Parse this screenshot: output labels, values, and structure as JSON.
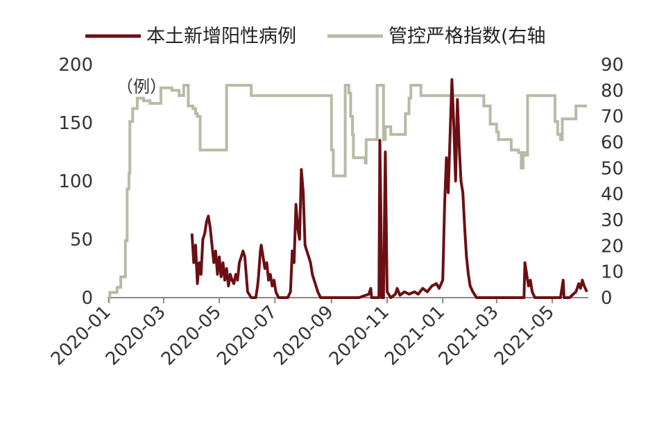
{
  "chart_data": {
    "type": "line",
    "legend": {
      "position": "top"
    },
    "unit_label": "（例）",
    "grid": false,
    "x_ticks": [
      "2020-01",
      "2020-03",
      "2020-05",
      "2020-07",
      "2020-09",
      "2020-11",
      "2021-01",
      "2021-03",
      "2021-05"
    ],
    "y_left": {
      "ticks": [
        "0",
        "50",
        "100",
        "150",
        "200"
      ],
      "range": [
        0,
        200
      ]
    },
    "y_right": {
      "ticks": [
        "0",
        "10",
        "20",
        "30",
        "40",
        "50",
        "60",
        "70",
        "80",
        "90"
      ],
      "range": [
        0,
        90
      ]
    },
    "x_range": [
      "2020-01-01",
      "2021-06-08"
    ],
    "series": [
      {
        "name": "本土新增阳性病例",
        "axis": "left",
        "color": "#6b0f14",
        "points": [
          [
            "2020-04-01",
            55
          ],
          [
            "2020-04-03",
            30
          ],
          [
            "2020-04-05",
            45
          ],
          [
            "2020-04-07",
            12
          ],
          [
            "2020-04-09",
            30
          ],
          [
            "2020-04-11",
            20
          ],
          [
            "2020-04-13",
            50
          ],
          [
            "2020-04-15",
            55
          ],
          [
            "2020-04-17",
            65
          ],
          [
            "2020-04-19",
            70
          ],
          [
            "2020-04-21",
            60
          ],
          [
            "2020-04-23",
            45
          ],
          [
            "2020-04-25",
            30
          ],
          [
            "2020-04-27",
            40
          ],
          [
            "2020-04-29",
            20
          ],
          [
            "2020-05-01",
            35
          ],
          [
            "2020-05-03",
            18
          ],
          [
            "2020-05-05",
            30
          ],
          [
            "2020-05-07",
            15
          ],
          [
            "2020-05-09",
            25
          ],
          [
            "2020-05-11",
            10
          ],
          [
            "2020-05-13",
            20
          ],
          [
            "2020-05-15",
            15
          ],
          [
            "2020-05-17",
            12
          ],
          [
            "2020-05-19",
            20
          ],
          [
            "2020-05-21",
            15
          ],
          [
            "2020-05-23",
            30
          ],
          [
            "2020-05-25",
            35
          ],
          [
            "2020-05-27",
            40
          ],
          [
            "2020-05-29",
            35
          ],
          [
            "2020-06-01",
            5
          ],
          [
            "2020-06-05",
            0
          ],
          [
            "2020-06-10",
            0
          ],
          [
            "2020-06-12",
            10
          ],
          [
            "2020-06-13",
            18
          ],
          [
            "2020-06-15",
            40
          ],
          [
            "2020-06-16",
            45
          ],
          [
            "2020-06-18",
            35
          ],
          [
            "2020-06-20",
            25
          ],
          [
            "2020-06-22",
            30
          ],
          [
            "2020-06-24",
            15
          ],
          [
            "2020-06-26",
            20
          ],
          [
            "2020-06-28",
            10
          ],
          [
            "2020-06-30",
            15
          ],
          [
            "2020-07-02",
            5
          ],
          [
            "2020-07-05",
            0
          ],
          [
            "2020-07-10",
            0
          ],
          [
            "2020-07-12",
            0
          ],
          [
            "2020-07-15",
            0
          ],
          [
            "2020-07-18",
            5
          ],
          [
            "2020-07-20",
            40
          ],
          [
            "2020-07-22",
            30
          ],
          [
            "2020-07-24",
            80
          ],
          [
            "2020-07-26",
            60
          ],
          [
            "2020-07-28",
            50
          ],
          [
            "2020-07-30",
            110
          ],
          [
            "2020-08-01",
            90
          ],
          [
            "2020-08-03",
            45
          ],
          [
            "2020-08-05",
            40
          ],
          [
            "2020-08-07",
            35
          ],
          [
            "2020-08-09",
            30
          ],
          [
            "2020-08-11",
            20
          ],
          [
            "2020-08-13",
            15
          ],
          [
            "2020-08-15",
            10
          ],
          [
            "2020-08-17",
            5
          ],
          [
            "2020-08-20",
            0
          ],
          [
            "2020-09-01",
            0
          ],
          [
            "2020-09-15",
            0
          ],
          [
            "2020-10-01",
            0
          ],
          [
            "2020-10-12",
            3
          ],
          [
            "2020-10-14",
            8
          ],
          [
            "2020-10-15",
            0
          ],
          [
            "2020-10-23",
            0
          ],
          [
            "2020-10-24",
            135
          ],
          [
            "2020-10-25",
            80
          ],
          [
            "2020-10-26",
            0
          ],
          [
            "2020-10-28",
            0
          ],
          [
            "2020-10-30",
            125
          ],
          [
            "2020-11-01",
            5
          ],
          [
            "2020-11-05",
            0
          ],
          [
            "2020-11-10",
            3
          ],
          [
            "2020-11-12",
            8
          ],
          [
            "2020-11-15",
            2
          ],
          [
            "2020-11-20",
            5
          ],
          [
            "2020-11-25",
            3
          ],
          [
            "2020-12-01",
            5
          ],
          [
            "2020-12-05",
            3
          ],
          [
            "2020-12-10",
            8
          ],
          [
            "2020-12-15",
            5
          ],
          [
            "2020-12-20",
            10
          ],
          [
            "2020-12-25",
            12
          ],
          [
            "2020-12-28",
            8
          ],
          [
            "2021-01-01",
            15
          ],
          [
            "2021-01-03",
            80
          ],
          [
            "2021-01-05",
            120
          ],
          [
            "2021-01-07",
            90
          ],
          [
            "2021-01-09",
            140
          ],
          [
            "2021-01-11",
            187
          ],
          [
            "2021-01-13",
            150
          ],
          [
            "2021-01-15",
            100
          ],
          [
            "2021-01-17",
            170
          ],
          [
            "2021-01-19",
            130
          ],
          [
            "2021-01-21",
            100
          ],
          [
            "2021-01-23",
            90
          ],
          [
            "2021-01-25",
            60
          ],
          [
            "2021-01-27",
            35
          ],
          [
            "2021-01-29",
            20
          ],
          [
            "2021-01-31",
            10
          ],
          [
            "2021-02-03",
            5
          ],
          [
            "2021-02-07",
            0
          ],
          [
            "2021-02-15",
            0
          ],
          [
            "2021-03-01",
            0
          ],
          [
            "2021-03-15",
            0
          ],
          [
            "2021-03-25",
            0
          ],
          [
            "2021-03-31",
            0
          ],
          [
            "2021-04-01",
            30
          ],
          [
            "2021-04-03",
            20
          ],
          [
            "2021-04-05",
            10
          ],
          [
            "2021-04-07",
            15
          ],
          [
            "2021-04-09",
            5
          ],
          [
            "2021-04-12",
            0
          ],
          [
            "2021-04-20",
            0
          ],
          [
            "2021-05-01",
            0
          ],
          [
            "2021-05-10",
            0
          ],
          [
            "2021-05-13",
            15
          ],
          [
            "2021-05-14",
            0
          ],
          [
            "2021-05-20",
            0
          ],
          [
            "2021-05-24",
            3
          ],
          [
            "2021-05-27",
            5
          ],
          [
            "2021-05-30",
            12
          ],
          [
            "2021-06-01",
            8
          ],
          [
            "2021-06-03",
            15
          ],
          [
            "2021-06-05",
            10
          ],
          [
            "2021-06-08",
            5
          ]
        ]
      },
      {
        "name": "管控严格指数(右轴",
        "axis": "right",
        "color": "#bab9a4",
        "step": true,
        "points": [
          [
            "2020-01-01",
            0
          ],
          [
            "2020-01-02",
            2
          ],
          [
            "2020-01-10",
            4
          ],
          [
            "2020-01-14",
            8
          ],
          [
            "2020-01-19",
            22
          ],
          [
            "2020-01-21",
            42
          ],
          [
            "2020-01-23",
            48
          ],
          [
            "2020-01-24",
            68
          ],
          [
            "2020-01-27",
            73
          ],
          [
            "2020-02-01",
            77
          ],
          [
            "2020-02-08",
            76
          ],
          [
            "2020-02-15",
            75
          ],
          [
            "2020-02-27",
            81
          ],
          [
            "2020-03-10",
            80
          ],
          [
            "2020-03-18",
            78
          ],
          [
            "2020-03-23",
            82
          ],
          [
            "2020-03-28",
            74
          ],
          [
            "2020-04-02",
            73
          ],
          [
            "2020-04-05",
            71
          ],
          [
            "2020-04-07",
            70
          ],
          [
            "2020-04-10",
            57
          ],
          [
            "2020-04-20",
            57
          ],
          [
            "2020-05-05",
            57
          ],
          [
            "2020-05-09",
            82
          ],
          [
            "2020-05-20",
            82
          ],
          [
            "2020-06-01",
            82
          ],
          [
            "2020-06-05",
            78
          ],
          [
            "2020-06-25",
            78
          ],
          [
            "2020-07-15",
            78
          ],
          [
            "2020-08-15",
            78
          ],
          [
            "2020-08-30",
            78
          ],
          [
            "2020-09-01",
            57
          ],
          [
            "2020-09-03",
            47
          ],
          [
            "2020-09-10",
            47
          ],
          [
            "2020-09-16",
            82
          ],
          [
            "2020-09-20",
            79
          ],
          [
            "2020-09-22",
            70
          ],
          [
            "2020-09-24",
            63
          ],
          [
            "2020-09-25",
            54
          ],
          [
            "2020-10-05",
            54
          ],
          [
            "2020-10-08",
            52
          ],
          [
            "2020-10-09",
            61
          ],
          [
            "2020-10-18",
            61
          ],
          [
            "2020-10-21",
            82
          ],
          [
            "2020-10-27",
            82
          ],
          [
            "2020-10-28",
            61
          ],
          [
            "2020-10-30",
            66
          ],
          [
            "2020-11-05",
            63
          ],
          [
            "2020-11-20",
            63
          ],
          [
            "2020-11-21",
            71
          ],
          [
            "2020-11-25",
            77
          ],
          [
            "2020-11-27",
            82
          ],
          [
            "2020-12-05",
            82
          ],
          [
            "2020-12-08",
            78
          ],
          [
            "2020-12-20",
            78
          ],
          [
            "2021-01-15",
            78
          ],
          [
            "2021-02-10",
            78
          ],
          [
            "2021-02-15",
            74
          ],
          [
            "2021-02-22",
            67
          ],
          [
            "2021-03-01",
            64
          ],
          [
            "2021-03-03",
            61
          ],
          [
            "2021-03-10",
            61
          ],
          [
            "2021-03-17",
            57
          ],
          [
            "2021-03-25",
            56
          ],
          [
            "2021-03-28",
            50
          ],
          [
            "2021-03-30",
            56
          ],
          [
            "2021-04-02",
            55
          ],
          [
            "2021-04-04",
            78
          ],
          [
            "2021-04-15",
            78
          ],
          [
            "2021-04-28",
            78
          ],
          [
            "2021-05-04",
            68
          ],
          [
            "2021-05-07",
            63
          ],
          [
            "2021-05-10",
            61
          ],
          [
            "2021-05-12",
            69
          ],
          [
            "2021-05-15",
            69
          ],
          [
            "2021-05-20",
            69
          ],
          [
            "2021-05-27",
            74
          ],
          [
            "2021-05-30",
            74
          ],
          [
            "2021-06-03",
            74
          ],
          [
            "2021-06-08",
            74
          ]
        ]
      }
    ]
  }
}
